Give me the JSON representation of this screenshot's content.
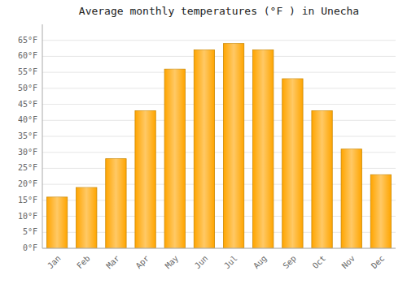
{
  "chart_data": {
    "type": "bar",
    "title": "Average monthly temperatures (°F ) in Unecha",
    "categories": [
      "Jan",
      "Feb",
      "Mar",
      "Apr",
      "May",
      "Jun",
      "Jul",
      "Aug",
      "Sep",
      "Oct",
      "Nov",
      "Dec"
    ],
    "values": [
      16,
      19,
      28,
      43,
      56,
      62,
      64,
      62,
      53,
      43,
      31,
      23
    ],
    "color": "#FFA500",
    "ylim": [
      0,
      70
    ],
    "yticks": [
      {
        "value": 0,
        "label": "0°F"
      },
      {
        "value": 5,
        "label": "5°F"
      },
      {
        "value": 10,
        "label": "10°F"
      },
      {
        "value": 15,
        "label": "15°F"
      },
      {
        "value": 20,
        "label": "20°F"
      },
      {
        "value": 25,
        "label": "25°F"
      },
      {
        "value": 30,
        "label": "30°F"
      },
      {
        "value": 35,
        "label": "35°F"
      },
      {
        "value": 40,
        "label": "40°F"
      },
      {
        "value": 45,
        "label": "45°F"
      },
      {
        "value": 50,
        "label": "50°F"
      },
      {
        "value": 55,
        "label": "55°F"
      },
      {
        "value": 60,
        "label": "60°F"
      },
      {
        "value": 65,
        "label": "65°F"
      }
    ],
    "grid": true
  }
}
